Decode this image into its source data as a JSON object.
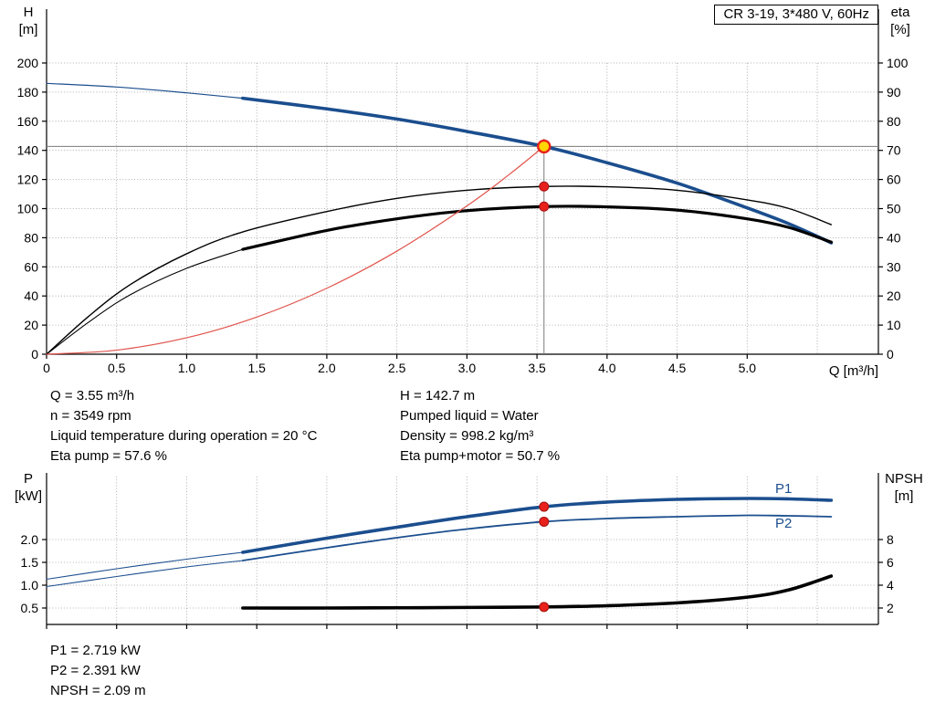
{
  "title_box": {
    "label": "CR 3-19, 3*480 V, 60Hz"
  },
  "axis_labels": {
    "top_left_1": "H",
    "top_left_2": "[m]",
    "top_right_1": "eta",
    "top_right_2": "[%]",
    "x_axis": "Q [m³/h]",
    "bottom_left_1": "P",
    "bottom_left_2": "[kW]",
    "bottom_right_1": "NPSH",
    "bottom_right_2": "[m]"
  },
  "curve_labels": {
    "p1": "P1",
    "p2": "P2"
  },
  "info_top_left": [
    "Q = 3.55 m³/h",
    "n = 3549 rpm",
    "Liquid temperature during operation = 20 °C",
    "Eta pump = 57.6 %"
  ],
  "info_top_right": [
    "H = 142.7 m",
    "Pumped liquid = Water",
    "Density = 998.2 kg/m³",
    "Eta pump+motor = 50.7 %"
  ],
  "info_bottom": [
    "P1 = 2.719 kW",
    "P2 = 2.391 kW",
    "NPSH = 2.09 m"
  ],
  "colors": {
    "curve_blue": "#1b4e8e",
    "curve_black": "#000000",
    "system_red": "#e0544c",
    "dot_red": "#e8211d",
    "duty_yellow": "#ffd500",
    "grid": "#9a9a9a",
    "ref_line": "#7a7a7a"
  },
  "chart_data": [
    {
      "id": "top",
      "type": "line",
      "title": "CR 3-19, 3*480 V, 60Hz",
      "xlabel": "Q [m³/h]",
      "ylabel_left": "H [m]",
      "ylabel_right": "eta [%]",
      "xlim": [
        0,
        5.94
      ],
      "ylim_left": [
        0,
        200
      ],
      "ylim_right": [
        0,
        100
      ],
      "grid": true,
      "x_ticks": [
        0,
        0.5,
        1.0,
        1.5,
        2.0,
        2.5,
        3.0,
        3.5,
        4.0,
        4.5,
        5.0
      ],
      "x_tick_labels": [
        "0",
        "0.5",
        "1.0",
        "1.5",
        "2.0",
        "2.5",
        "3.0",
        "3.5",
        "4.0",
        "4.5",
        "5.0"
      ],
      "x_grid_extra": [
        5.5
      ],
      "y_left_ticks": [
        0,
        20,
        40,
        60,
        80,
        100,
        120,
        140,
        160,
        180,
        200
      ],
      "y_left_tick_labels": [
        "0",
        "20",
        "40",
        "60",
        "80",
        "100",
        "120",
        "140",
        "160",
        "180",
        "200"
      ],
      "y_right_ticks": [
        0,
        10,
        20,
        30,
        40,
        50,
        60,
        70,
        80,
        90,
        100
      ],
      "y_right_tick_labels": [
        "0",
        "10",
        "20",
        "30",
        "40",
        "50",
        "60",
        "70",
        "80",
        "90",
        "100"
      ],
      "duty_point": {
        "q_m3h": 3.55,
        "h_m": 142.7,
        "eta_pump_pct": 57.6,
        "eta_pump_motor_pct": 50.7
      },
      "ref_lines": [
        {
          "type": "h",
          "value": 142.7
        },
        {
          "type": "v",
          "x": 3.55,
          "from": 0,
          "to": 148
        }
      ],
      "series": [
        {
          "name": "h-curve-thin",
          "axis": "left",
          "color": "#1b4e8e",
          "width": 1.2,
          "x": [
            0,
            0.5,
            1.0,
            1.4
          ],
          "y": [
            186,
            183.5,
            179.5,
            175.8
          ]
        },
        {
          "name": "h-curve",
          "axis": "left",
          "color": "#1b4e8e",
          "width": 3.6,
          "x": [
            1.4,
            2.0,
            2.5,
            3.0,
            3.55,
            4.0,
            4.5,
            5.0,
            5.3,
            5.6
          ],
          "y": [
            175.8,
            168.5,
            161.5,
            153,
            142.7,
            131.5,
            117.5,
            100.5,
            89.5,
            76.5
          ]
        },
        {
          "name": "eta-pump-curve",
          "axis": "right",
          "color": "#000000",
          "width": 1.4,
          "x": [
            0,
            0.3,
            0.6,
            1.0,
            1.4,
            2.0,
            2.5,
            3.0,
            3.55,
            4.0,
            4.5,
            5.0,
            5.3,
            5.6
          ],
          "y": [
            0,
            13,
            24,
            34.5,
            42,
            49,
            53.5,
            56.3,
            57.6,
            57.5,
            56.3,
            53,
            50,
            44.5
          ]
        },
        {
          "name": "eta-pump-motor-curve-thin",
          "axis": "right",
          "color": "#000000",
          "width": 1.1,
          "x": [
            0,
            0.3,
            0.6,
            1.0,
            1.4
          ],
          "y": [
            0,
            11,
            20.5,
            29.5,
            36
          ]
        },
        {
          "name": "eta-pump-motor-curve",
          "axis": "right",
          "color": "#000000",
          "width": 3.2,
          "x": [
            1.4,
            2.0,
            2.5,
            3.0,
            3.55,
            4.0,
            4.5,
            5.0,
            5.3,
            5.6
          ],
          "y": [
            36,
            42.5,
            46.5,
            49.3,
            50.7,
            50.6,
            49.5,
            46.5,
            43.5,
            38.5
          ]
        },
        {
          "name": "system-curve",
          "axis": "left",
          "color": "#e0544c",
          "width": 1.2,
          "x": [
            0,
            0.5,
            1.0,
            1.5,
            2.0,
            2.5,
            3.0,
            3.3,
            3.55
          ],
          "y": [
            0,
            2.8,
            11.3,
            25.5,
            45.3,
            70.8,
            101.9,
            123.3,
            142.7
          ]
        }
      ],
      "markers": [
        {
          "x": 3.55,
          "value": 142.7,
          "axis": "left",
          "style": "duty"
        },
        {
          "x": 3.55,
          "value": 57.6,
          "axis": "right",
          "style": "dot"
        },
        {
          "x": 3.55,
          "value": 50.7,
          "axis": "right",
          "style": "dot"
        }
      ]
    },
    {
      "id": "bottom",
      "type": "line",
      "title": "",
      "xlabel": "",
      "ylabel_left": "P [kW]",
      "ylabel_right": "NPSH [m]",
      "xlim": [
        0,
        5.94
      ],
      "ylim_left": [
        0,
        3.4
      ],
      "ylim_right": [
        0,
        13
      ],
      "grid": true,
      "x_ticks": [
        0,
        0.5,
        1.0,
        1.5,
        2.0,
        2.5,
        3.0,
        3.5,
        4.0,
        4.5,
        5.0
      ],
      "x_tick_labels": [],
      "x_grid_extra": [
        5.5
      ],
      "y_left_ticks": [
        0.5,
        1.0,
        1.5,
        2.0
      ],
      "y_left_tick_labels": [
        "0.5",
        "1.0",
        "1.5",
        "2.0"
      ],
      "y_right_ticks": [
        2,
        4,
        6,
        8
      ],
      "y_right_tick_labels": [
        "2",
        "4",
        "6",
        "8"
      ],
      "duty_point": {
        "q_m3h": 3.55,
        "p1_kw": 2.719,
        "p2_kw": 2.391,
        "npsh_m": 2.09
      },
      "ref_lines": [],
      "series": [
        {
          "name": "p1-curve-thin",
          "axis": "left",
          "color": "#1b4e8e",
          "width": 1.1,
          "x": [
            0,
            0.5,
            1.0,
            1.4
          ],
          "y": [
            1.13,
            1.36,
            1.57,
            1.72
          ]
        },
        {
          "name": "p1-curve",
          "axis": "left",
          "color": "#1b4e8e",
          "width": 3.6,
          "x": [
            1.4,
            2.0,
            2.5,
            3.0,
            3.55,
            4.0,
            4.5,
            5.0,
            5.3,
            5.6
          ],
          "y": [
            1.72,
            2.03,
            2.27,
            2.5,
            2.719,
            2.82,
            2.88,
            2.9,
            2.89,
            2.86
          ]
        },
        {
          "name": "p2-curve-thin",
          "axis": "left",
          "color": "#1b4e8e",
          "width": 1.1,
          "x": [
            0,
            0.5,
            1.0,
            1.4
          ],
          "y": [
            0.97,
            1.19,
            1.4,
            1.54
          ]
        },
        {
          "name": "p2-curve",
          "axis": "left",
          "color": "#1b4e8e",
          "width": 1.8,
          "x": [
            1.4,
            2.0,
            2.5,
            3.0,
            3.55,
            4.0,
            4.5,
            5.0,
            5.3,
            5.6
          ],
          "y": [
            1.54,
            1.82,
            2.04,
            2.23,
            2.391,
            2.46,
            2.5,
            2.53,
            2.52,
            2.5
          ]
        },
        {
          "name": "npsh-curve",
          "axis": "right",
          "color": "#000000",
          "width": 3.6,
          "x": [
            1.4,
            2.0,
            2.5,
            3.0,
            3.55,
            4.0,
            4.5,
            5.0,
            5.3,
            5.6
          ],
          "y": [
            2.0,
            2.0,
            2.02,
            2.05,
            2.09,
            2.2,
            2.45,
            2.95,
            3.6,
            4.8
          ]
        }
      ],
      "markers": [
        {
          "x": 3.55,
          "value": 2.719,
          "axis": "left",
          "style": "dot"
        },
        {
          "x": 3.55,
          "value": 2.391,
          "axis": "left",
          "style": "dot"
        },
        {
          "x": 3.55,
          "value": 2.09,
          "axis": "right",
          "style": "dot"
        }
      ]
    }
  ]
}
